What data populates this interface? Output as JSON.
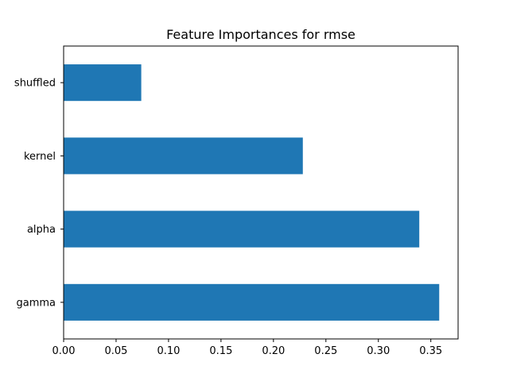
{
  "chart_data": {
    "type": "bar",
    "orientation": "horizontal",
    "title": "Feature Importances for rmse",
    "xlabel": "",
    "ylabel": "",
    "categories": [
      "shuffled",
      "kernel",
      "alpha",
      "gamma"
    ],
    "values": [
      0.074,
      0.228,
      0.339,
      0.358
    ],
    "xlim": [
      0.0,
      0.376
    ],
    "x_ticks": [
      0.0,
      0.05,
      0.1,
      0.15,
      0.2,
      0.25,
      0.3,
      0.35
    ],
    "x_tick_labels": [
      "0.00",
      "0.05",
      "0.10",
      "0.15",
      "0.20",
      "0.25",
      "0.30",
      "0.35"
    ],
    "grid": false,
    "legend": "none",
    "bar_color": "#1f77b4"
  }
}
